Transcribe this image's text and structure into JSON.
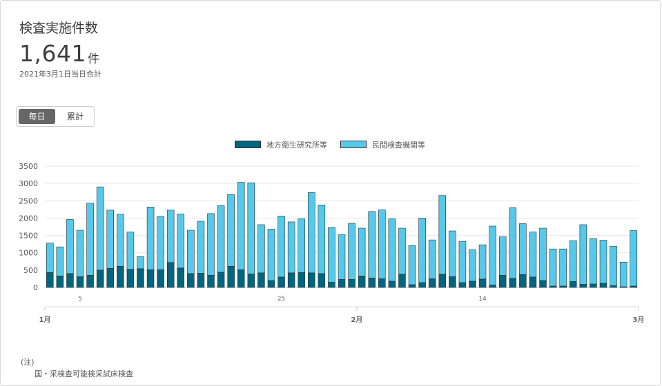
{
  "header": {
    "title": "検査実施件数",
    "total_value": "1,641",
    "total_unit": "件",
    "date_note": "2021年3月1日当日合計"
  },
  "toggle": {
    "daily_label": "毎日",
    "cumulative_label": "累計"
  },
  "legend": {
    "series1_label": "地方衛生研究所等",
    "series2_label": "民間検査機関等"
  },
  "colors": {
    "series1": "#00667f",
    "series2": "#56c9ea",
    "grid": "#e6e6e6"
  },
  "notes": {
    "heading": "(注)",
    "line1": "国・采検査可能検采試床検査"
  },
  "chart_data": {
    "type": "bar",
    "stacked": true,
    "title": "",
    "ylim": [
      0,
      3500
    ],
    "y_ticks": [
      0,
      500,
      1000,
      1500,
      2000,
      2500,
      3000,
      3500
    ],
    "day_tick_labels": [
      {
        "index": 3,
        "label": "5"
      },
      {
        "index": 23,
        "label": "25"
      },
      {
        "index": 43,
        "label": "14"
      }
    ],
    "month_tick_labels": [
      {
        "index": 0,
        "label": "1月"
      },
      {
        "index": 31,
        "label": "2月"
      },
      {
        "index": 59,
        "label": "3月"
      }
    ],
    "series": [
      {
        "name": "地方衛生研究所等",
        "values": [
          430,
          330,
          400,
          310,
          350,
          500,
          550,
          610,
          520,
          540,
          510,
          510,
          720,
          560,
          400,
          410,
          350,
          440,
          610,
          510,
          390,
          420,
          200,
          300,
          420,
          430,
          420,
          400,
          150,
          230,
          230,
          330,
          270,
          250,
          180,
          380,
          80,
          140,
          250,
          380,
          310,
          140,
          180,
          240,
          70,
          350,
          260,
          370,
          300,
          200,
          40,
          40,
          170,
          90,
          100,
          120,
          50,
          20,
          40
        ]
      },
      {
        "name": "民間検査機関等",
        "values": [
          850,
          840,
          1560,
          1340,
          2080,
          2400,
          1680,
          1500,
          1080,
          350,
          1810,
          1540,
          1510,
          1560,
          1250,
          1500,
          1780,
          1920,
          2070,
          2520,
          2630,
          1390,
          1480,
          1760,
          1470,
          1550,
          2320,
          1980,
          1580,
          1290,
          1620,
          1380,
          1920,
          1990,
          1800,
          1330,
          1130,
          1860,
          1120,
          2270,
          1320,
          1190,
          910,
          990,
          1700,
          1110,
          2040,
          1470,
          1300,
          1510,
          1070,
          1070,
          1180,
          1720,
          1310,
          1240,
          1140,
          710,
          1600
        ]
      }
    ]
  }
}
